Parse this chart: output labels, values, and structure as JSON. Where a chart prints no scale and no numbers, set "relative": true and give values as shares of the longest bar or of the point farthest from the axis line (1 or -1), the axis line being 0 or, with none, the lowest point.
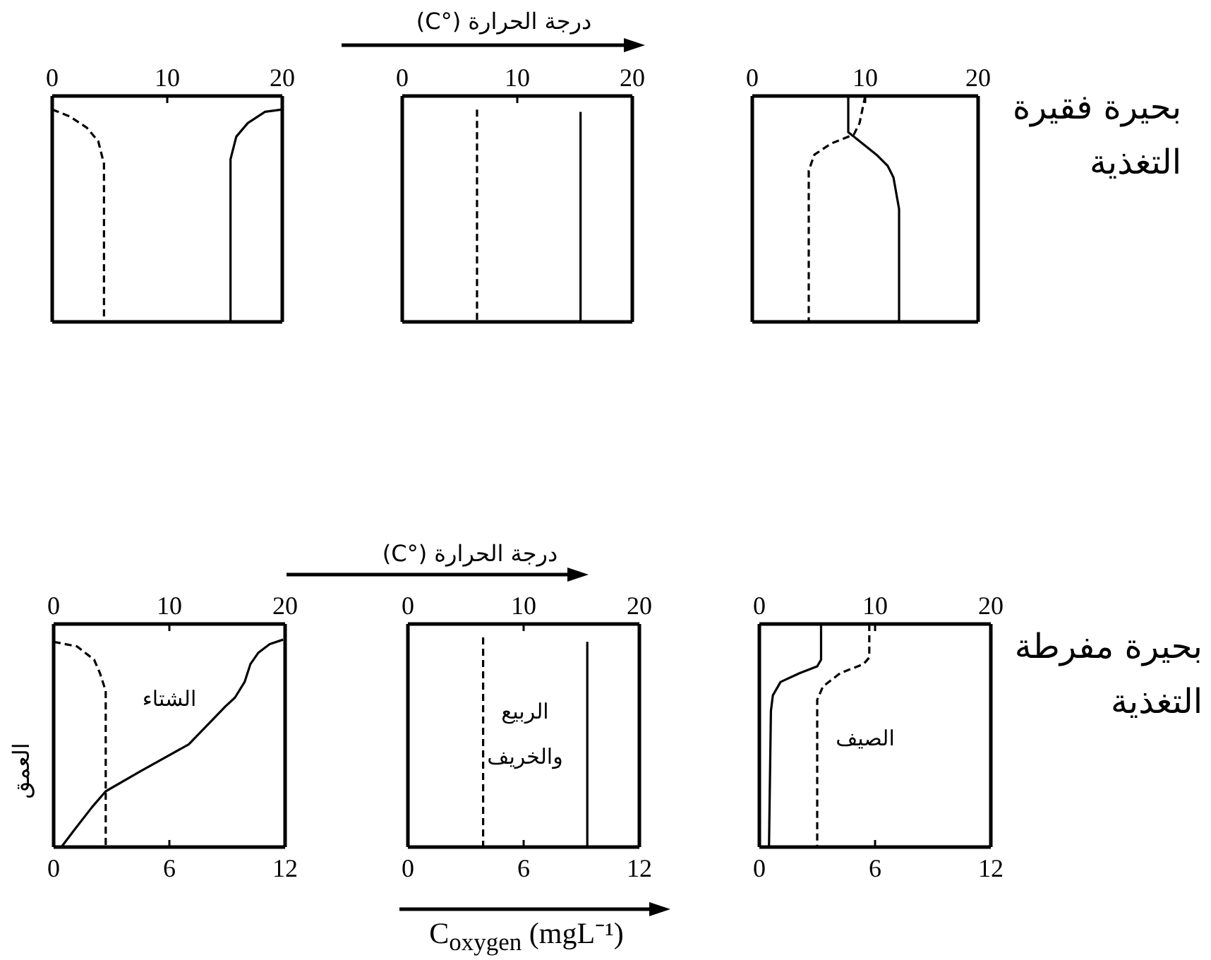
{
  "chart_data": [
    {
      "type": "line",
      "relative": true,
      "xlim": [
        0,
        20
      ],
      "xticks": [
        0,
        10,
        20
      ],
      "series": [
        {
          "color": "#000000",
          "line_style": "dashed",
          "x": [
            0,
            1.5,
            3,
            4,
            4.5,
            4.5
          ],
          "values": [
            -0.06,
            -0.09,
            -0.14,
            -0.2,
            -0.3,
            -1
          ]
        },
        {
          "color": "#000000",
          "line_style": "solid",
          "x": [
            20,
            18.5,
            17,
            16,
            15.5,
            15.5
          ],
          "values": [
            -0.06,
            -0.07,
            -0.12,
            -0.18,
            -0.28,
            -1
          ]
        }
      ]
    },
    {
      "type": "line",
      "relative": true,
      "xlim": [
        0,
        20
      ],
      "xticks": [
        0,
        10,
        20
      ],
      "xlabel": "درجة الحرارة (°C)",
      "series": [
        {
          "color": "#000000",
          "line_style": "dashed",
          "x": [
            6.5,
            6.5
          ],
          "values": [
            -0.06,
            -1
          ]
        },
        {
          "color": "#000000",
          "line_style": "solid",
          "x": [
            15.5,
            15.5
          ],
          "values": [
            -0.07,
            -1
          ]
        }
      ]
    },
    {
      "type": "line",
      "relative": true,
      "xlim": [
        0,
        20
      ],
      "xticks": [
        0,
        10,
        20
      ],
      "annotations": [
        "بحيرة فقيرة التغذية"
      ],
      "series": [
        {
          "color": "#000000",
          "line_style": "dashed",
          "x": [
            10,
            9.5,
            9,
            7,
            5.5,
            5,
            5,
            5
          ],
          "values": [
            0,
            -0.12,
            -0.17,
            -0.21,
            -0.26,
            -0.33,
            -0.45,
            -1
          ]
        },
        {
          "color": "#000000",
          "line_style": "solid",
          "x": [
            8.5,
            8.5,
            8.5,
            9.5,
            11,
            12,
            12.5,
            13,
            13
          ],
          "values": [
            0,
            -0.09,
            -0.16,
            -0.2,
            -0.26,
            -0.31,
            -0.36,
            -0.5,
            -1
          ]
        }
      ]
    },
    {
      "type": "line",
      "relative": true,
      "xlim": [
        0,
        12
      ],
      "xticks": [
        0,
        6,
        12
      ],
      "x2lim": [
        0,
        20
      ],
      "x2ticks": [
        0,
        10,
        20
      ],
      "ylabel": "العمق",
      "annotations": [
        "الشتاء"
      ],
      "series": [
        {
          "color": "#000000",
          "line_style": "dashed",
          "axis": "x2",
          "x": [
            0,
            2,
            3.5,
            4,
            4.5,
            4.5
          ],
          "values": [
            -0.08,
            -0.1,
            -0.16,
            -0.22,
            -0.3,
            -1
          ]
        },
        {
          "color": "#000000",
          "line_style": "solid",
          "x": [
            11.9,
            11.2,
            10.6,
            10.2,
            9.9,
            9.4,
            8.9,
            7,
            4.5,
            2.7,
            2,
            1.1,
            0.4
          ],
          "values": [
            -0.07,
            -0.09,
            -0.13,
            -0.18,
            -0.26,
            -0.33,
            -0.37,
            -0.54,
            -0.66,
            -0.75,
            -0.82,
            -0.92,
            -1
          ]
        }
      ]
    },
    {
      "type": "line",
      "relative": true,
      "xlim": [
        0,
        12
      ],
      "xticks": [
        0,
        6,
        12
      ],
      "x2lim": [
        0,
        20
      ],
      "x2ticks": [
        0,
        10,
        20
      ],
      "x2label": "درجة الحرارة (°C)",
      "xlabel": "C$_{oxygen}$ (mgL⁻¹)",
      "annotations": [
        "الربيع والخريف"
      ],
      "series": [
        {
          "color": "#000000",
          "line_style": "dashed",
          "axis": "x2",
          "x": [
            6.5,
            6.5
          ],
          "values": [
            -0.06,
            -1
          ]
        },
        {
          "color": "#000000",
          "line_style": "solid",
          "x": [
            9.3,
            9.3
          ],
          "values": [
            -0.08,
            -1
          ]
        }
      ]
    },
    {
      "type": "line",
      "relative": true,
      "xlim": [
        0,
        12
      ],
      "xticks": [
        0,
        6,
        12
      ],
      "x2lim": [
        0,
        20
      ],
      "x2ticks": [
        0,
        10,
        20
      ],
      "annotations": [
        "الصيف",
        "بحيرة مفرطة التغذية"
      ],
      "series": [
        {
          "color": "#000000",
          "line_style": "dashed",
          "axis": "x2",
          "x": [
            9.5,
            9.5,
            9,
            7,
            5.5,
            5,
            5,
            5
          ],
          "values": [
            0,
            -0.15,
            -0.18,
            -0.22,
            -0.28,
            -0.34,
            -0.45,
            -1
          ]
        },
        {
          "color": "#000000",
          "line_style": "solid",
          "x": [
            3.2,
            3.2,
            3,
            2.1,
            1.1,
            0.7,
            0.6,
            0.5
          ],
          "values": [
            0,
            -0.16,
            -0.19,
            -0.22,
            -0.26,
            -0.32,
            -0.39,
            -1
          ]
        }
      ]
    }
  ]
}
